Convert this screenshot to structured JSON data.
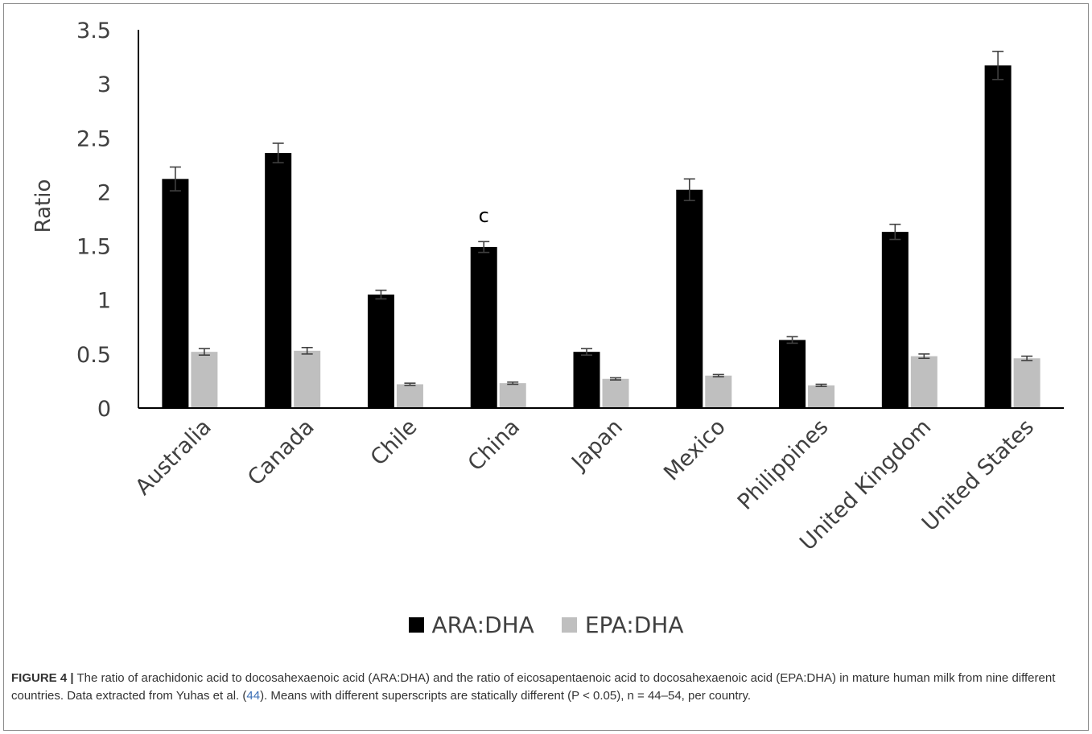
{
  "chart_data": {
    "type": "bar",
    "title": "",
    "xlabel": "",
    "ylabel": "Ratio",
    "ylim": [
      0,
      3.5
    ],
    "yticks": [
      "0",
      "0.5",
      "1",
      "1.5",
      "2",
      "2.5",
      "3",
      "3.5"
    ],
    "grid": false,
    "legend_position": "bottom",
    "categories": [
      "Australia",
      "Canada",
      "Chile",
      "China",
      "Japan",
      "Mexico",
      "Philippines",
      "United Kingdom",
      "United States"
    ],
    "series": [
      {
        "name": "ARA:DHA",
        "color": "#000000",
        "values": [
          2.12,
          2.36,
          1.05,
          1.49,
          0.52,
          2.02,
          0.63,
          1.63,
          3.17
        ],
        "errors": [
          0.11,
          0.09,
          0.04,
          0.05,
          0.03,
          0.1,
          0.03,
          0.07,
          0.13
        ]
      },
      {
        "name": "EPA:DHA",
        "color": "#bfbfbf",
        "values": [
          0.52,
          0.53,
          0.22,
          0.23,
          0.27,
          0.3,
          0.21,
          0.48,
          0.46
        ],
        "errors": [
          0.03,
          0.03,
          0.01,
          0.01,
          0.01,
          0.01,
          0.01,
          0.02,
          0.02
        ]
      }
    ],
    "annotations": [
      {
        "category": "China",
        "series": "ARA:DHA",
        "text": "c"
      }
    ]
  },
  "caption": {
    "label": "FIGURE 4 |",
    "text_before_ref": " The ratio of arachidonic acid to docosahexaenoic acid (ARA:DHA) and the ratio of eicosapentaenoic acid to docosahexaenoic acid (EPA:DHA) in mature human milk from nine different countries. Data extracted from Yuhas et al. (",
    "ref": "44",
    "text_after_ref": "). Means with different superscripts are statically different (P < 0.05), n = 44–54, per country."
  }
}
